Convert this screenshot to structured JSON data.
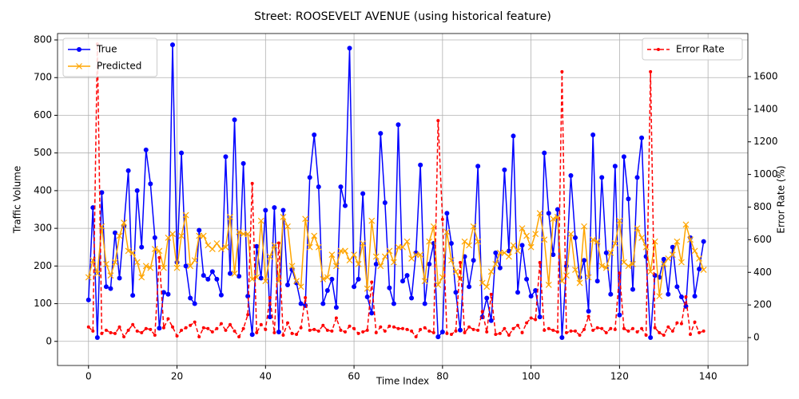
{
  "chart_data": {
    "type": "line",
    "title": "Street: ROOSEVELT AVENUE (using historical feature)",
    "xlabel": "Time Index",
    "ylabel": "Traffic Volume",
    "y2label": "Error Rate (%)",
    "x": [
      0,
      1,
      2,
      3,
      4,
      5,
      6,
      7,
      8,
      9,
      10,
      11,
      12,
      13,
      14,
      15,
      16,
      17,
      18,
      19,
      20,
      21,
      22,
      23,
      24,
      25,
      26,
      27,
      28,
      29,
      30,
      31,
      32,
      33,
      34,
      35,
      36,
      37,
      38,
      39,
      40,
      41,
      42,
      43,
      44,
      45,
      46,
      47,
      48,
      49,
      50,
      51,
      52,
      53,
      54,
      55,
      56,
      57,
      58,
      59,
      60,
      61,
      62,
      63,
      64,
      65,
      66,
      67,
      68,
      69,
      70,
      71,
      72,
      73,
      74,
      75,
      76,
      77,
      78,
      79,
      80,
      81,
      82,
      83,
      84,
      85,
      86,
      87,
      88,
      89,
      90,
      91,
      92,
      93,
      94,
      95,
      96,
      97,
      98,
      99,
      100,
      101,
      102,
      103,
      104,
      105,
      106,
      107,
      108,
      109,
      110,
      111,
      112,
      113,
      114,
      115,
      116,
      117,
      118,
      119,
      120,
      121,
      122,
      123,
      124,
      125,
      126,
      127,
      128,
      129,
      130,
      131,
      132,
      133,
      134,
      135,
      136,
      137,
      138,
      139
    ],
    "series": [
      {
        "name": "True",
        "color": "#0000ff",
        "marker": "o",
        "linestyle": "solid",
        "axis": "y",
        "values": [
          110,
          355,
          10,
          395,
          145,
          140,
          288,
          168,
          305,
          453,
          122,
          400,
          250,
          508,
          418,
          275,
          35,
          130,
          125,
          787,
          210,
          500,
          200,
          115,
          100,
          295,
          175,
          165,
          185,
          165,
          123,
          490,
          180,
          588,
          173,
          472,
          120,
          18,
          252,
          168,
          348,
          65,
          355,
          25,
          348,
          150,
          190,
          155,
          100,
          95,
          435,
          548,
          410,
          100,
          135,
          165,
          90,
          410,
          360,
          778,
          145,
          165,
          392,
          118,
          75,
          205,
          552,
          368,
          142,
          100,
          575,
          160,
          175,
          115,
          235,
          468,
          100,
          205,
          260,
          12,
          25,
          340,
          260,
          130,
          30,
          225,
          145,
          215,
          465,
          65,
          115,
          55,
          235,
          195,
          455,
          240,
          545,
          130,
          255,
          165,
          120,
          135,
          65,
          500,
          340,
          230,
          350,
          10,
          200,
          440,
          275,
          170,
          215,
          80,
          548,
          160,
          435,
          235,
          125,
          465,
          70,
          490,
          378,
          138,
          435,
          540,
          225,
          10,
          175,
          170,
          218,
          125,
          250,
          145,
          118,
          93,
          275,
          120,
          192,
          265
        ]
      },
      {
        "name": "Predicted",
        "color": "#ffa500",
        "marker": "x",
        "linestyle": "solid",
        "axis": "y",
        "values": [
          170,
          215,
          180,
          305,
          205,
          175,
          210,
          280,
          315,
          240,
          235,
          210,
          170,
          200,
          195,
          245,
          240,
          195,
          275,
          285,
          195,
          280,
          335,
          200,
          215,
          280,
          280,
          255,
          245,
          260,
          245,
          250,
          330,
          180,
          290,
          285,
          285,
          165,
          170,
          320,
          160,
          225,
          255,
          160,
          330,
          305,
          200,
          160,
          145,
          325,
          250,
          280,
          250,
          165,
          170,
          230,
          200,
          240,
          240,
          215,
          230,
          205,
          260,
          140,
          320,
          225,
          200,
          225,
          240,
          210,
          250,
          250,
          265,
          220,
          230,
          230,
          160,
          265,
          305,
          150,
          170,
          290,
          215,
          185,
          165,
          265,
          255,
          305,
          265,
          155,
          145,
          185,
          205,
          235,
          235,
          225,
          255,
          240,
          300,
          280,
          250,
          285,
          340,
          270,
          150,
          325,
          330,
          160,
          175,
          285,
          190,
          155,
          305,
          170,
          270,
          265,
          200,
          195,
          235,
          260,
          320,
          210,
          200,
          205,
          300,
          275,
          250,
          185,
          265,
          120,
          205,
          220,
          230,
          265,
          210,
          310,
          270,
          240,
          220,
          190
        ]
      },
      {
        "name": "Error Rate",
        "color": "#ff0000",
        "marker": ".",
        "linestyle": "dashed",
        "axis": "y2",
        "values": [
          65,
          40,
          1800,
          25,
          45,
          30,
          25,
          65,
          5,
          45,
          80,
          40,
          30,
          55,
          50,
          15,
          490,
          60,
          115,
          65,
          10,
          45,
          60,
          75,
          95,
          5,
          60,
          55,
          35,
          55,
          85,
          45,
          80,
          40,
          5,
          55,
          140,
          945,
          30,
          80,
          50,
          245,
          30,
          580,
          15,
          90,
          25,
          20,
          60,
          245,
          45,
          50,
          40,
          75,
          45,
          40,
          120,
          45,
          35,
          70,
          55,
          25,
          35,
          45,
          340,
          30,
          65,
          40,
          70,
          65,
          55,
          55,
          50,
          40,
          5,
          50,
          60,
          40,
          30,
          1330,
          725,
          25,
          20,
          40,
          460,
          30,
          65,
          50,
          45,
          160,
          35,
          265,
          20,
          25,
          55,
          15,
          55,
          75,
          30,
          90,
          120,
          110,
          460,
          45,
          55,
          45,
          35,
          1630,
          30,
          40,
          40,
          15,
          50,
          130,
          45,
          60,
          55,
          30,
          55,
          50,
          395,
          55,
          40,
          55,
          35,
          55,
          15,
          1630,
          60,
          30,
          15,
          65,
          40,
          90,
          85,
          250,
          20,
          95,
          30,
          40
        ]
      }
    ],
    "xlim": [
      -7,
      149
    ],
    "xticks": [
      0,
      20,
      40,
      60,
      80,
      100,
      120,
      140
    ],
    "ylim": [
      -64,
      817
    ],
    "yticks": [
      0,
      100,
      200,
      300,
      400,
      500,
      600,
      700,
      800
    ],
    "y2lim": [
      -171,
      1864
    ],
    "y2ticks": [
      0,
      200,
      400,
      600,
      800,
      1000,
      1200,
      1400,
      1600
    ],
    "grid": true,
    "legend": "upper left",
    "legend2": "upper right"
  }
}
